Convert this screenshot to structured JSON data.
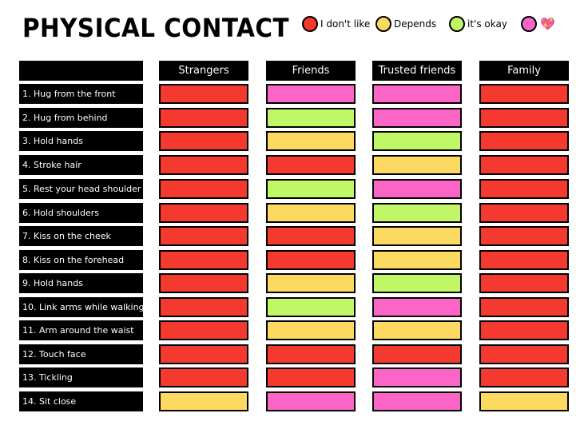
{
  "title": "PHYSICAL CONTACT",
  "legend": [
    {
      "key": "dislike",
      "label": "I don't like",
      "color": "#f43a2f"
    },
    {
      "key": "depends",
      "label": "Depends",
      "color": "#fcd960"
    },
    {
      "key": "okay",
      "label": "it's okay",
      "color": "#bff766"
    },
    {
      "key": "love",
      "label": "",
      "icon": "sparkling-heart-icon",
      "color": "#fb66c6"
    }
  ],
  "columns": [
    "Strangers",
    "Friends",
    "Trusted friends",
    "Family"
  ],
  "rows": [
    {
      "label": "1. Hug from the front",
      "values": [
        "dislike",
        "love",
        "love",
        "dislike"
      ]
    },
    {
      "label": "2. Hug from behind",
      "values": [
        "dislike",
        "okay",
        "love",
        "dislike"
      ]
    },
    {
      "label": "3. Hold hands",
      "values": [
        "dislike",
        "depends",
        "okay",
        "dislike"
      ]
    },
    {
      "label": "4. Stroke hair",
      "values": [
        "dislike",
        "dislike",
        "depends",
        "dislike"
      ]
    },
    {
      "label": "5. Rest your head shoulder",
      "values": [
        "dislike",
        "okay",
        "love",
        "dislike"
      ]
    },
    {
      "label": "6. Hold shoulders",
      "values": [
        "dislike",
        "depends",
        "okay",
        "dislike"
      ]
    },
    {
      "label": "7. Kiss on the cheek",
      "values": [
        "dislike",
        "dislike",
        "depends",
        "dislike"
      ]
    },
    {
      "label": "8. Kiss  on the forehead",
      "values": [
        "dislike",
        "dislike",
        "depends",
        "dislike"
      ]
    },
    {
      "label": "9. Hold hands",
      "values": [
        "dislike",
        "depends",
        "okay",
        "dislike"
      ]
    },
    {
      "label": "10. Link arms while walking",
      "values": [
        "dislike",
        "okay",
        "love",
        "dislike"
      ]
    },
    {
      "label": "11. Arm around the waist",
      "values": [
        "dislike",
        "depends",
        "depends",
        "dislike"
      ]
    },
    {
      "label": "12. Touch face",
      "values": [
        "dislike",
        "dislike",
        "dislike",
        "dislike"
      ]
    },
    {
      "label": "13. Tickling",
      "values": [
        "dislike",
        "dislike",
        "love",
        "dislike"
      ]
    },
    {
      "label": "14. Sit close",
      "values": [
        "depends",
        "love",
        "love",
        "depends"
      ]
    }
  ]
}
